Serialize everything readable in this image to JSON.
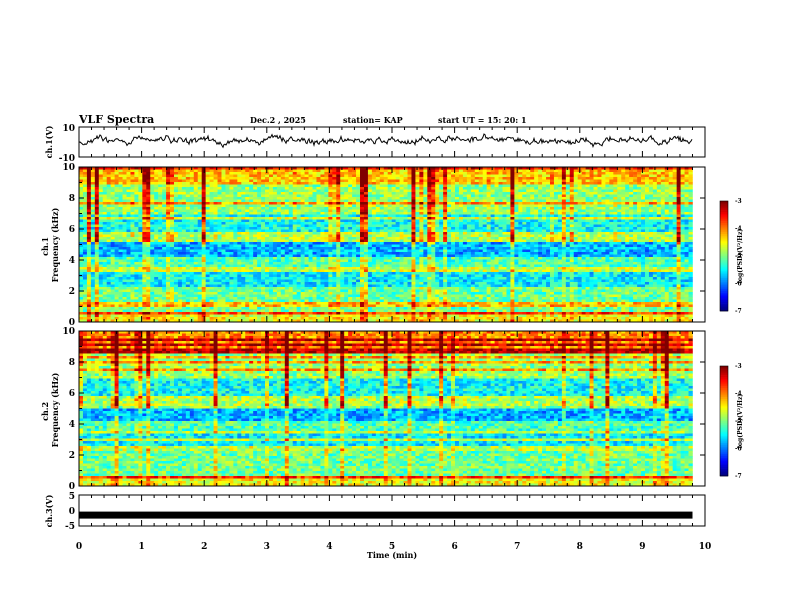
{
  "header": {
    "title": "VLF Spectra",
    "date": "Dec.2 , 2025",
    "station": "station= KAP",
    "start": "start UT =  15: 20: 1"
  },
  "chart_data": [
    {
      "type": "line",
      "name": "ch1-waveform",
      "ylabel": "ch.1(V)",
      "ylim": [
        -10,
        10
      ],
      "yticks": [
        "10",
        "-10"
      ],
      "x_range_min": [
        0,
        9.8
      ],
      "approx_mean_V": 1,
      "approx_amplitude_V": 5
    },
    {
      "type": "heatmap",
      "name": "ch1-spectrogram",
      "ylabel": "ch.1\nFrequency (kHz)",
      "ylim_kHz": [
        0,
        10
      ],
      "yticks": [
        "0",
        "2",
        "4",
        "6",
        "8",
        "10"
      ],
      "colorbar": {
        "label": "log(PSD)(V²/Hz)",
        "min": -7,
        "max": -3,
        "ticks": [
          "-3",
          "-4",
          "-5",
          "-6",
          "-7"
        ]
      }
    },
    {
      "type": "heatmap",
      "name": "ch2-spectrogram",
      "ylabel": "ch.2\nFrequency (kHz)",
      "ylim_kHz": [
        0,
        10
      ],
      "yticks": [
        "0",
        "2",
        "4",
        "6",
        "8",
        "10"
      ],
      "colorbar": {
        "label": "log(PSD)(V²/Hz)",
        "min": -7,
        "max": -3,
        "ticks": [
          "-3",
          "-4",
          "-5",
          "-6",
          "-7"
        ]
      }
    },
    {
      "type": "line",
      "name": "ch3-signal",
      "ylabel": "ch.3(V)",
      "ylim": [
        -5,
        5
      ],
      "yticks": [
        "5",
        "0",
        "-5"
      ],
      "approx_level_V": -1.5
    }
  ],
  "x_axis": {
    "label": "Time (min)",
    "range": [
      0,
      10
    ],
    "ticks": [
      "0",
      "1",
      "2",
      "3",
      "4",
      "5",
      "6",
      "7",
      "8",
      "9",
      "10"
    ]
  },
  "colors": {
    "axes": "#000000",
    "background": "#ffffff"
  }
}
